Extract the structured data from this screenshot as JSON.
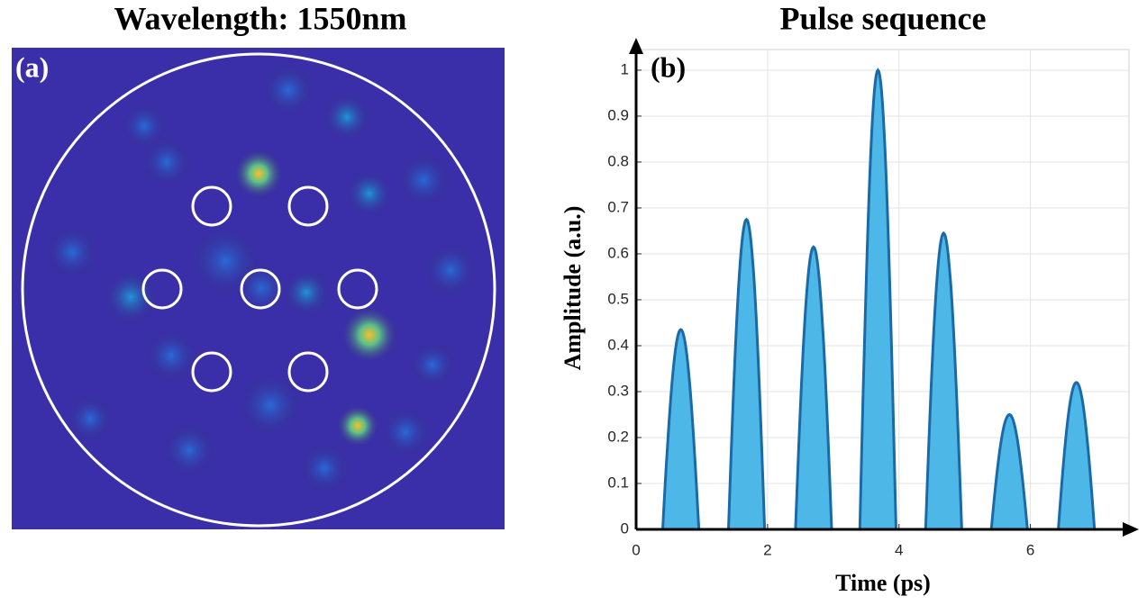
{
  "chart_data": [
    {
      "type": "image",
      "title": "Wavelength: 1550nm",
      "label": "(a)"
    },
    {
      "type": "pulse",
      "title": "Pulse sequence",
      "label": "(b)",
      "xlabel": "Time (ps)",
      "ylabel": "Amplitude (a.u.)",
      "x": [
        0.68,
        1.68,
        2.7,
        3.68,
        4.68,
        5.68,
        6.7
      ],
      "values": [
        0.435,
        0.675,
        0.615,
        1.0,
        0.645,
        0.25,
        0.32
      ],
      "color": "#4db8e8",
      "xlim": [
        0,
        7.5
      ],
      "ylim": [
        0,
        1.045
      ],
      "xticks": [
        0,
        2,
        4,
        6
      ],
      "yticks": [
        0,
        0.1,
        0.2,
        0.3,
        0.4,
        0.5,
        0.6,
        0.7,
        0.8,
        0.9,
        1
      ],
      "grid": true
    }
  ]
}
